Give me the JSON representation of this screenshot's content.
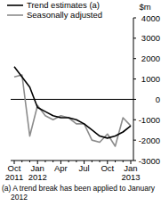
{
  "chart_data": {
    "type": "line",
    "y_label": "$m",
    "footnote": "(a) A trend break has been applied to January 2012",
    "categories": [
      "Oct 2011",
      null,
      null,
      "Jan 2012",
      null,
      null,
      "Apr",
      null,
      null,
      "Jul",
      null,
      null,
      "Oct",
      null,
      null,
      "Jan 2013"
    ],
    "series": [
      {
        "name": "Trend estimates (a)",
        "color": "#000000",
        "line_style": "solid",
        "values": [
          1600,
          1100,
          600,
          -400,
          -600,
          -800,
          -900,
          -900,
          -1000,
          -1200,
          -1500,
          -1800,
          -1900,
          -1800,
          -1600,
          -1300
        ]
      },
      {
        "name": "Seasonally adjusted",
        "color": "#8c8c8c",
        "line_style": "solid",
        "values": [
          1100,
          1200,
          -1800,
          -300,
          -800,
          -1000,
          -800,
          -900,
          -1200,
          -1200,
          -2000,
          -2100,
          -1700,
          -2300,
          -900,
          -1300
        ]
      }
    ],
    "ylim": [
      -3000,
      4000
    ],
    "yticks": [
      4000,
      3000,
      2000,
      1000,
      0,
      -1000,
      -2000,
      -3000
    ],
    "grid": false,
    "legend": "top-left"
  }
}
